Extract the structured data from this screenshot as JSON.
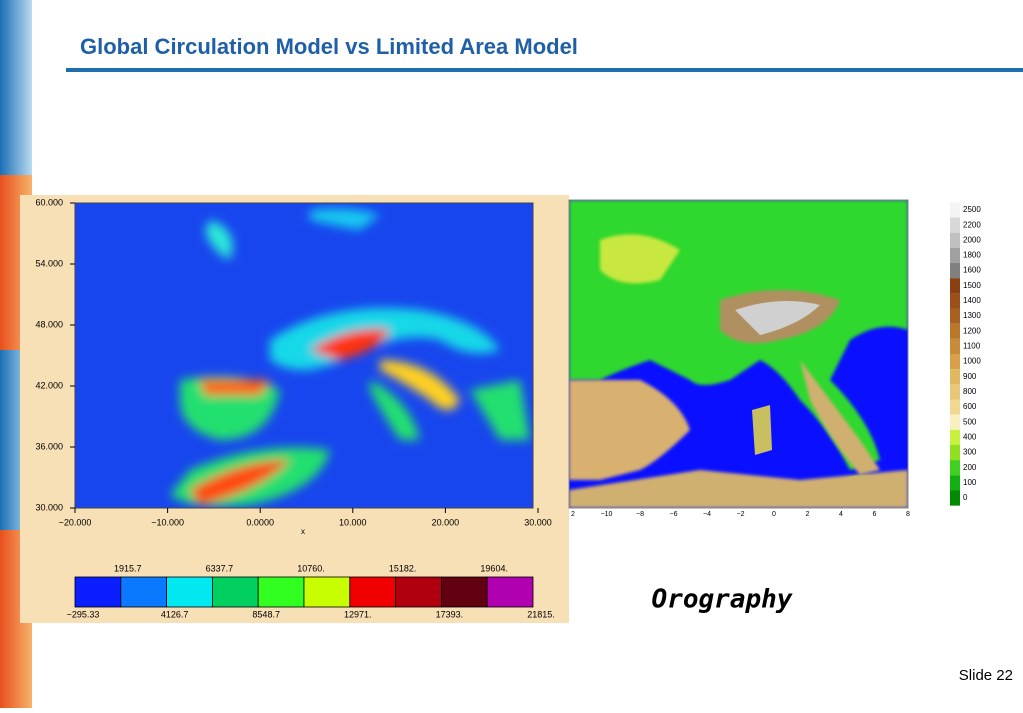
{
  "title": "Global Circulation Model vs Limited Area Model",
  "left_map": {
    "yticks": [
      "60.000",
      "54.000",
      "48.000",
      "42.000",
      "36.000",
      "30.000"
    ],
    "xticks": [
      "−20.000",
      "−10.000",
      "0.0000",
      "10.000",
      "20.000",
      "30.000"
    ],
    "xlabel": "x",
    "colorbar_top": [
      "1915.7",
      "6337.7",
      "10760.",
      "15182.",
      "19604."
    ],
    "colorbar_bottom": [
      "−295.33",
      "4126.7",
      "8548.7",
      "12971.",
      "17393.",
      "21815."
    ]
  },
  "right_map": {
    "xticks": [
      "2",
      "−10",
      "−8",
      "−6",
      "−4",
      "−2",
      "0",
      "2",
      "4",
      "6",
      "8"
    ],
    "legend": [
      "2500",
      "2200",
      "2000",
      "1800",
      "1600",
      "1500",
      "1400",
      "1300",
      "1200",
      "1100",
      "1000",
      "900",
      "800",
      "600",
      "500",
      "400",
      "300",
      "200",
      "100",
      "0"
    ]
  },
  "caption": "Orography",
  "footer": "Slide 22"
}
